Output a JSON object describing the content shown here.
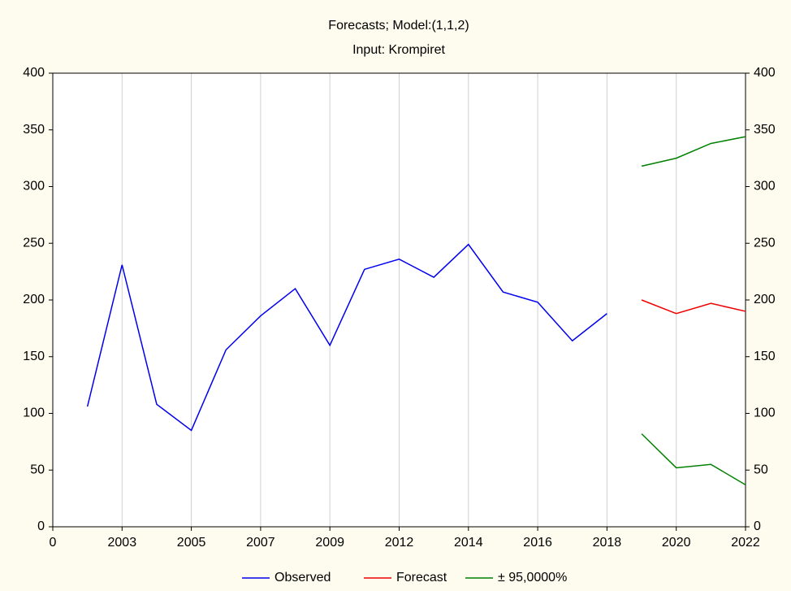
{
  "chart_data": {
    "type": "line",
    "title": "Forecasts; Model:(1,1,2)",
    "subtitle": "Input: Krompiret",
    "x": [
      1,
      2,
      3,
      4,
      5,
      6,
      7,
      8,
      9,
      10,
      11,
      12,
      13,
      14,
      15,
      16,
      17,
      18,
      19,
      20
    ],
    "xlim": [
      0,
      20
    ],
    "xticks": [
      0,
      {
        "value": 2,
        "label": "2003"
      },
      {
        "value": 4,
        "label": "2005"
      },
      {
        "value": 6,
        "label": "2007"
      },
      {
        "value": 8,
        "label": "2009"
      },
      {
        "value": 10,
        "label": "2012"
      },
      {
        "value": 12,
        "label": "2014"
      },
      {
        "value": 14,
        "label": "2016"
      },
      {
        "value": 16,
        "label": "2018"
      },
      {
        "value": 18,
        "label": "2020"
      },
      {
        "value": 20,
        "label": "2022"
      }
    ],
    "ylim": [
      0,
      400
    ],
    "yticks": [
      0,
      50,
      100,
      150,
      200,
      250,
      300,
      350,
      400
    ],
    "y2lim": [
      0,
      400
    ],
    "y2ticks": [
      0,
      50,
      100,
      150,
      200,
      250,
      300,
      350,
      400
    ],
    "grid": "x",
    "series": [
      {
        "name": "Observed",
        "color": "#0000ee",
        "values": [
          106,
          231,
          108,
          85,
          156,
          186,
          210,
          160,
          227,
          236,
          220,
          249,
          207,
          198,
          164,
          188,
          null,
          null,
          null,
          null
        ]
      },
      {
        "name": "Forecast",
        "color": "#ee0000",
        "values": [
          null,
          null,
          null,
          null,
          null,
          null,
          null,
          null,
          null,
          null,
          null,
          null,
          null,
          null,
          null,
          null,
          200,
          188,
          197,
          190
        ]
      },
      {
        "name": "± 95,0000%",
        "color": "#008000",
        "upper": [
          null,
          null,
          null,
          null,
          null,
          null,
          null,
          null,
          null,
          null,
          null,
          null,
          null,
          null,
          null,
          null,
          318,
          325,
          338,
          344
        ],
        "lower": [
          null,
          null,
          null,
          null,
          null,
          null,
          null,
          null,
          null,
          null,
          null,
          null,
          null,
          null,
          null,
          null,
          82,
          52,
          55,
          37
        ]
      }
    ]
  }
}
